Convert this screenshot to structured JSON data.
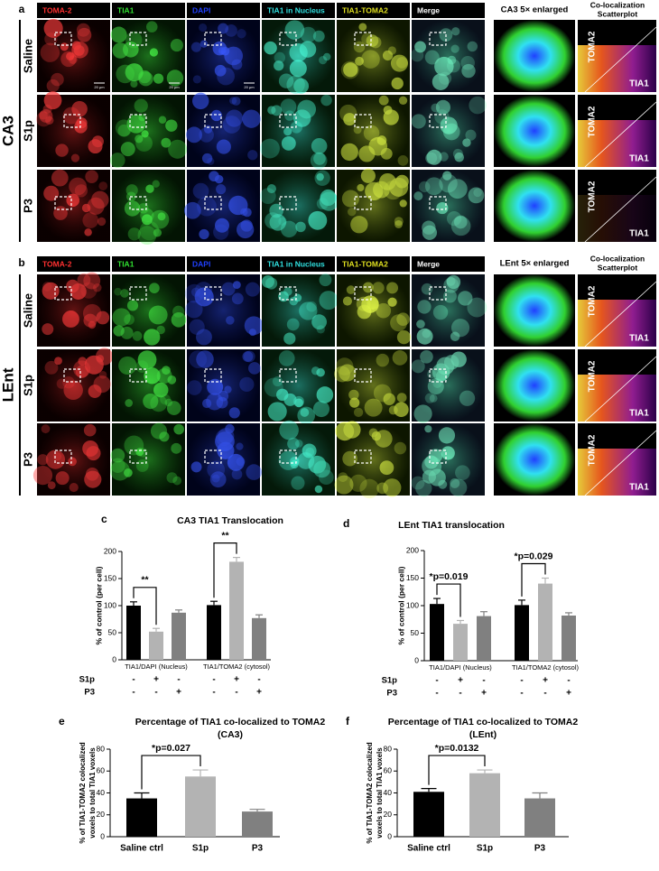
{
  "panels": [
    {
      "label": "a",
      "region": "CA3",
      "columns": [
        "TOMA-2",
        "TIA1",
        "DAPI",
        "TIA1 in Nucleus",
        "TIA1-TOMA2",
        "Merge"
      ],
      "rows": [
        "Saline",
        "S1p",
        "P3"
      ],
      "enlarged_title": "CA3 5× enlarged",
      "scatter_title": [
        "Co-localization",
        "Scatterplot"
      ],
      "scatter_axes": [
        "TOMA2",
        "TIA1"
      ],
      "scale_bars": [
        "20 μm",
        "20 μm",
        "20 μm"
      ]
    },
    {
      "label": "b",
      "region": "LEnt",
      "columns": [
        "TOMA-2",
        "TIA1",
        "DAPI",
        "TIA1 in Nucleus",
        "TIA1-TOMA2",
        "Merge"
      ],
      "rows": [
        "Saline",
        "S1p",
        "P3"
      ],
      "enlarged_title": "LEnt 5× enlarged",
      "scatter_title": [
        "Co-localization",
        "Scatterplot"
      ],
      "scatter_axes": [
        "TOMA2",
        "TIA1"
      ]
    }
  ],
  "chart_data": [
    {
      "type": "bar",
      "label": "c",
      "title": "CA3 TIA1 Translocation",
      "y_label": "% of control (per cell)",
      "categories": [
        "TIA1/DAPI (Nucleus)",
        "TIA1/TOMA2 (cytosol)"
      ],
      "series": [
        {
          "color": "#000000",
          "values": [
            100,
            101
          ],
          "errors": [
            7,
            7
          ]
        },
        {
          "color": "#b3b3b3",
          "values": [
            52,
            181
          ],
          "errors": [
            6,
            8
          ]
        },
        {
          "color": "#808080",
          "values": [
            87,
            77
          ],
          "errors": [
            5,
            6
          ]
        }
      ],
      "treatments": [
        {
          "label": "S1p",
          "signs": [
            "-",
            "+",
            "-",
            "-",
            "+",
            "-"
          ]
        },
        {
          "label": "P3",
          "signs": [
            "-",
            "-",
            "+",
            "-",
            "-",
            "+"
          ]
        }
      ],
      "annotations": [
        "**",
        "**"
      ],
      "ylim": [
        0,
        200
      ],
      "yticks": [
        0,
        50,
        100,
        150,
        200
      ]
    },
    {
      "type": "bar",
      "label": "d",
      "title": "LEnt TIA1 translocation",
      "y_label": "% of control (per cell)",
      "categories": [
        "TIA1/DAPI (Nucleus)",
        "TIA1/TOMA2 (cytosol)"
      ],
      "series": [
        {
          "color": "#000000",
          "values": [
            103,
            101
          ],
          "errors": [
            10,
            9
          ]
        },
        {
          "color": "#b3b3b3",
          "values": [
            67,
            140
          ],
          "errors": [
            6,
            10
          ]
        },
        {
          "color": "#808080",
          "values": [
            81,
            82
          ],
          "errors": [
            8,
            5
          ]
        }
      ],
      "treatments": [
        {
          "label": "S1p",
          "signs": [
            "-",
            "+",
            "-",
            "-",
            "+",
            "-"
          ]
        },
        {
          "label": "P3",
          "signs": [
            "-",
            "-",
            "+",
            "-",
            "-",
            "+"
          ]
        }
      ],
      "annotations": [
        "*p=0.019",
        "*p=0.029"
      ],
      "ylim": [
        0,
        200
      ],
      "yticks": [
        0,
        50,
        100,
        150,
        200
      ]
    },
    {
      "type": "bar",
      "label": "e",
      "title": "Percentage of TIA1 co-localized to TOMA2",
      "subtitle": "(CA3)",
      "y_label": [
        "% of TIA1-TOMA2 colocalized",
        "voxels to total TIA1 voxels"
      ],
      "categories": [
        "Saline ctrl",
        "S1p",
        "P3"
      ],
      "values": [
        35,
        55,
        23
      ],
      "errors": [
        5,
        6,
        2
      ],
      "colors": [
        "#000000",
        "#b3b3b3",
        "#808080"
      ],
      "annotations": [
        "*p=0.027"
      ],
      "ylim": [
        0,
        80
      ],
      "yticks": [
        0,
        20,
        40,
        60,
        80
      ]
    },
    {
      "type": "bar",
      "label": "f",
      "title": "Percentage of TIA1 co-localized to TOMA2",
      "subtitle": "(LEnt)",
      "y_label": [
        "% of TIA1-TOMA2 colocalized",
        "voxels to total TIA1 voxels"
      ],
      "categories": [
        "Saline ctrl",
        "S1p",
        "P3"
      ],
      "values": [
        41,
        58,
        35
      ],
      "errors": [
        3,
        3,
        5
      ],
      "colors": [
        "#000000",
        "#b3b3b3",
        "#808080"
      ],
      "annotations": [
        "*p=0.0132"
      ],
      "ylim": [
        0,
        80
      ],
      "yticks": [
        0,
        20,
        40,
        60,
        80
      ]
    }
  ]
}
